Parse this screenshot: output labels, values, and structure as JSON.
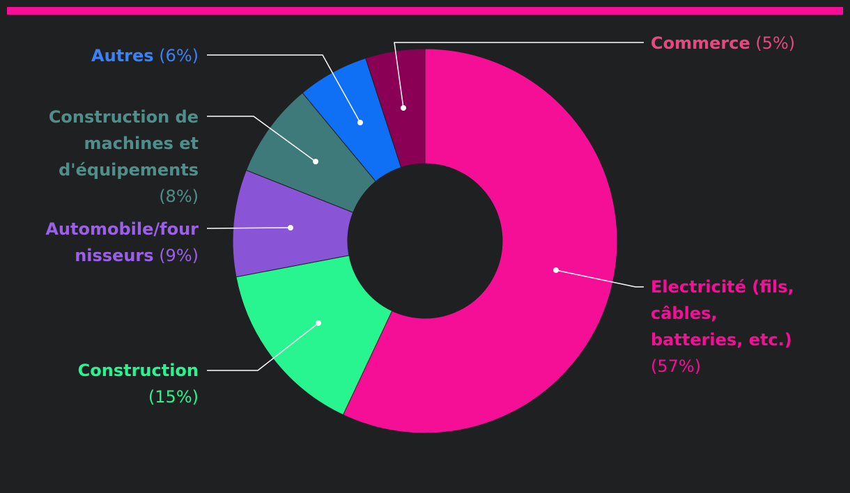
{
  "accent_color": "#f50f96",
  "background_color": "#1f2022",
  "chart_data": {
    "type": "pie",
    "donut": true,
    "title": "",
    "unit": "%",
    "start_angle_deg": 0,
    "direction": "clockwise",
    "series": [
      {
        "name": "Electricité (fils, câbles, batteries, etc.)",
        "label_lines": [
          "Electricité (fils,",
          "câbles,",
          "batteries, etc.)"
        ],
        "pct_text": "(57%)",
        "value": 57,
        "color": "#f50f96"
      },
      {
        "name": "Construction",
        "label_lines": [
          "Construction"
        ],
        "pct_text": "(15%)",
        "value": 15,
        "color": "#28f58f"
      },
      {
        "name": "Automobile/fournisseurs",
        "label_lines": [
          "Automobile/four",
          "nisseurs"
        ],
        "pct_text": "(9%)",
        "value": 9,
        "color": "#8a54d7"
      },
      {
        "name": "Construction de machines et d'équipements",
        "label_lines": [
          "Construction de",
          "machines et",
          "d'équipements"
        ],
        "pct_text": "(8%)",
        "value": 8,
        "color": "#3e7a79"
      },
      {
        "name": "Autres",
        "label_lines": [
          "Autres"
        ],
        "pct_text": "(6%)",
        "value": 6,
        "color": "#0f6ff5"
      },
      {
        "name": "Commerce",
        "label_lines": [
          "Commerce"
        ],
        "pct_text": "(5%)",
        "value": 5,
        "color": "#8a0054"
      }
    ]
  }
}
